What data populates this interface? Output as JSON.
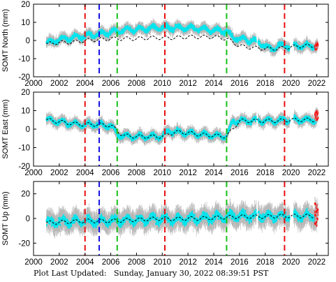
{
  "footer": {
    "label": "Plot Last Updated:",
    "datetime": "Sunday, January 30, 2022 08:39:51 PST"
  },
  "chart_data": [
    {
      "type": "scatter",
      "ylabel": "SOMT North (mm)",
      "xlim": [
        2000,
        2022.9
      ],
      "ylim": [
        -20,
        20
      ],
      "yticks": [
        -20,
        -10,
        0,
        10,
        20
      ],
      "xticks": [
        2000,
        2002,
        2004,
        2006,
        2008,
        2010,
        2012,
        2014,
        2016,
        2018,
        2020,
        2022
      ],
      "series": [
        {
          "color": "#00e5ee",
          "values": [
            [
              2001.0,
              -1.5
            ],
            [
              2001.5,
              -0.5
            ],
            [
              2002.0,
              0.5
            ],
            [
              2002.5,
              1.0
            ],
            [
              2003.0,
              1.5
            ],
            [
              2003.5,
              2.0
            ],
            [
              2004.0,
              2.5
            ],
            [
              2004.5,
              3.0
            ],
            [
              2005.0,
              3.5
            ],
            [
              2005.5,
              4.0
            ],
            [
              2006.0,
              4.5
            ],
            [
              2006.5,
              5.0
            ],
            [
              2007.0,
              5.5
            ],
            [
              2007.5,
              6.0
            ],
            [
              2008.0,
              6.0
            ],
            [
              2008.5,
              6.5
            ],
            [
              2009.0,
              6.5
            ],
            [
              2009.5,
              7.0
            ],
            [
              2010.0,
              7.0
            ],
            [
              2010.5,
              7.0
            ],
            [
              2011.0,
              7.0
            ],
            [
              2011.5,
              7.0
            ],
            [
              2012.0,
              7.0
            ],
            [
              2012.5,
              6.5
            ],
            [
              2013.0,
              6.5
            ],
            [
              2013.5,
              6.0
            ],
            [
              2014.0,
              5.5
            ],
            [
              2014.5,
              5.5
            ],
            [
              2015.0,
              5.0
            ],
            [
              2015.5,
              1.5
            ],
            [
              2016.0,
              1.0
            ],
            [
              2016.5,
              0.5
            ],
            [
              2017.0,
              0.0
            ],
            [
              2017.5,
              -1.0
            ],
            [
              2018.0,
              -3.0
            ],
            [
              2018.5,
              -5.0
            ],
            [
              2019.0,
              -3.0
            ],
            [
              2019.5,
              -3.0
            ],
            [
              2020.0,
              -3.0
            ],
            [
              2020.5,
              -3.0
            ],
            [
              2021.0,
              -3.0
            ],
            [
              2021.5,
              -3.0
            ],
            [
              2022.0,
              -3.0
            ]
          ]
        },
        {
          "color": "#000000",
          "values": [
            [
              2001.0,
              -2.0
            ],
            [
              2002.0,
              -1.0
            ],
            [
              2003.0,
              -1.0
            ],
            [
              2004.0,
              0.0
            ],
            [
              2005.0,
              0.5
            ],
            [
              2006.0,
              1.0
            ],
            [
              2007.0,
              1.0
            ],
            [
              2008.0,
              1.0
            ],
            [
              2009.0,
              1.5
            ],
            [
              2010.0,
              1.5
            ],
            [
              2011.0,
              1.5
            ],
            [
              2012.0,
              2.0
            ],
            [
              2013.0,
              2.0
            ],
            [
              2014.0,
              2.0
            ],
            [
              2015.0,
              1.0
            ],
            [
              2016.0,
              -3.0
            ],
            [
              2017.0,
              -4.0
            ],
            [
              2018.0,
              -4.5
            ],
            [
              2019.0,
              -4.5
            ],
            [
              2020.0,
              -3.5
            ],
            [
              2021.0,
              -3.0
            ],
            [
              2022.0,
              -3.0
            ]
          ]
        },
        {
          "color": "#ff0000",
          "values": [
            [
              2021.9,
              -3.0
            ],
            [
              2022.0,
              -2.0
            ],
            [
              2022.05,
              -4.0
            ]
          ]
        }
      ],
      "vlines": [
        {
          "x": 2004.0,
          "color": "#e81010"
        },
        {
          "x": 2005.1,
          "color": "#1414e6"
        },
        {
          "x": 2006.5,
          "color": "#18c018"
        },
        {
          "x": 2010.2,
          "color": "#e81010"
        },
        {
          "x": 2015.0,
          "color": "#18c018"
        },
        {
          "x": 2019.5,
          "color": "#e81010"
        }
      ]
    },
    {
      "type": "scatter",
      "ylabel": "SOMT East (mm)",
      "xlim": [
        2000,
        2022.9
      ],
      "ylim": [
        -20,
        20
      ],
      "yticks": [
        -20,
        -10,
        0,
        10,
        20
      ],
      "xticks": [
        2000,
        2002,
        2004,
        2006,
        2008,
        2010,
        2012,
        2014,
        2016,
        2018,
        2020,
        2022
      ],
      "series": [
        {
          "color": "#00e5ee",
          "values": [
            [
              2001.0,
              5.0
            ],
            [
              2001.5,
              4.5
            ],
            [
              2002.0,
              4.0
            ],
            [
              2002.5,
              3.5
            ],
            [
              2003.0,
              3.0
            ],
            [
              2003.5,
              2.5
            ],
            [
              2004.0,
              2.5
            ],
            [
              2004.5,
              2.5
            ],
            [
              2005.0,
              2.5
            ],
            [
              2005.5,
              2.0
            ],
            [
              2006.0,
              2.0
            ],
            [
              2006.5,
              -3.0
            ],
            [
              2007.0,
              -3.5
            ],
            [
              2007.5,
              -4.0
            ],
            [
              2008.0,
              -4.0
            ],
            [
              2008.5,
              -4.0
            ],
            [
              2009.0,
              -4.0
            ],
            [
              2009.5,
              -4.0
            ],
            [
              2010.0,
              -4.0
            ],
            [
              2010.5,
              -1.0
            ],
            [
              2011.0,
              -1.5
            ],
            [
              2011.5,
              -2.0
            ],
            [
              2012.0,
              -2.0
            ],
            [
              2012.5,
              -2.5
            ],
            [
              2013.0,
              -3.0
            ],
            [
              2013.5,
              -3.0
            ],
            [
              2014.0,
              -3.5
            ],
            [
              2014.5,
              -3.5
            ],
            [
              2015.0,
              -4.0
            ],
            [
              2015.5,
              4.5
            ],
            [
              2016.0,
              4.5
            ],
            [
              2016.5,
              4.5
            ],
            [
              2017.0,
              4.5
            ],
            [
              2017.5,
              4.5
            ],
            [
              2018.0,
              4.5
            ],
            [
              2018.5,
              4.5
            ],
            [
              2019.0,
              4.5
            ],
            [
              2019.5,
              5.0
            ],
            [
              2020.0,
              5.0
            ],
            [
              2020.5,
              5.0
            ],
            [
              2021.0,
              5.0
            ],
            [
              2021.5,
              5.0
            ],
            [
              2022.0,
              5.0
            ]
          ]
        },
        {
          "color": "#000000",
          "values": [
            [
              2001.0,
              5.0
            ],
            [
              2002.0,
              4.0
            ],
            [
              2003.0,
              3.0
            ],
            [
              2004.0,
              2.5
            ],
            [
              2005.0,
              2.5
            ],
            [
              2006.0,
              2.0
            ],
            [
              2007.0,
              -3.5
            ],
            [
              2008.0,
              -4.0
            ],
            [
              2009.0,
              -4.0
            ],
            [
              2010.0,
              -4.0
            ],
            [
              2011.0,
              -1.5
            ],
            [
              2012.0,
              -2.0
            ],
            [
              2013.0,
              -3.0
            ],
            [
              2014.0,
              -3.5
            ],
            [
              2015.0,
              -4.0
            ],
            [
              2016.0,
              4.5
            ],
            [
              2017.0,
              4.5
            ],
            [
              2018.0,
              4.5
            ],
            [
              2019.0,
              4.5
            ],
            [
              2020.0,
              5.0
            ],
            [
              2021.0,
              5.0
            ],
            [
              2022.0,
              5.0
            ]
          ]
        },
        {
          "color": "#ff0000",
          "values": [
            [
              2021.9,
              6.0
            ],
            [
              2022.0,
              8.0
            ],
            [
              2022.05,
              9.0
            ]
          ]
        }
      ],
      "vlines": [
        {
          "x": 2004.0,
          "color": "#e81010"
        },
        {
          "x": 2005.1,
          "color": "#1414e6"
        },
        {
          "x": 2006.5,
          "color": "#18c018"
        },
        {
          "x": 2010.2,
          "color": "#e81010"
        },
        {
          "x": 2015.0,
          "color": "#18c018"
        },
        {
          "x": 2019.5,
          "color": "#e81010"
        }
      ]
    },
    {
      "type": "scatter",
      "ylabel": "SOMT Up (mm)",
      "xlim": [
        2000,
        2022.9
      ],
      "ylim": [
        -30,
        30
      ],
      "yticks": [
        -20,
        0,
        20
      ],
      "xticks": [
        2000,
        2002,
        2004,
        2006,
        2008,
        2010,
        2012,
        2014,
        2016,
        2018,
        2020,
        2022
      ],
      "xticklabels": [
        "2000",
        "2002",
        "2004",
        "2006",
        "2008",
        "2010",
        "2012",
        "2014",
        "2016",
        "2018",
        "2020",
        "2022"
      ],
      "series": [
        {
          "color": "#00e5ee",
          "values": [
            [
              2001.0,
              -3.0
            ],
            [
              2001.5,
              -3.0
            ],
            [
              2002.0,
              -3.0
            ],
            [
              2002.5,
              -2.5
            ],
            [
              2003.0,
              -2.5
            ],
            [
              2003.5,
              -2.0
            ],
            [
              2004.0,
              -2.0
            ],
            [
              2004.5,
              -2.0
            ],
            [
              2005.0,
              -2.5
            ],
            [
              2005.5,
              -2.0
            ],
            [
              2006.0,
              -2.0
            ],
            [
              2006.5,
              -1.5
            ],
            [
              2007.0,
              -1.5
            ],
            [
              2007.5,
              -1.0
            ],
            [
              2008.0,
              -1.0
            ],
            [
              2008.5,
              -1.0
            ],
            [
              2009.0,
              -0.5
            ],
            [
              2009.5,
              -0.5
            ],
            [
              2010.0,
              0.0
            ],
            [
              2010.5,
              -1.0
            ],
            [
              2011.0,
              -1.0
            ],
            [
              2011.5,
              -0.5
            ],
            [
              2012.0,
              -0.5
            ],
            [
              2012.5,
              0.0
            ],
            [
              2013.0,
              0.0
            ],
            [
              2013.5,
              0.5
            ],
            [
              2014.0,
              0.5
            ],
            [
              2014.5,
              1.0
            ],
            [
              2015.0,
              1.0
            ],
            [
              2015.5,
              2.0
            ],
            [
              2016.0,
              2.0
            ],
            [
              2016.5,
              2.0
            ],
            [
              2017.0,
              2.0
            ],
            [
              2017.5,
              2.0
            ],
            [
              2018.0,
              2.0
            ],
            [
              2018.5,
              2.0
            ],
            [
              2019.0,
              2.0
            ],
            [
              2019.5,
              2.0
            ],
            [
              2020.0,
              2.0
            ],
            [
              2020.5,
              2.0
            ],
            [
              2021.0,
              2.0
            ],
            [
              2021.5,
              2.0
            ],
            [
              2022.0,
              2.0
            ]
          ]
        },
        {
          "color": "#000000",
          "values": [
            [
              2001.0,
              -3.5
            ],
            [
              2002.0,
              -3.0
            ],
            [
              2003.0,
              -2.5
            ],
            [
              2004.0,
              -2.0
            ],
            [
              2005.0,
              -2.0
            ],
            [
              2006.0,
              -2.0
            ],
            [
              2007.0,
              -1.5
            ],
            [
              2008.0,
              -1.0
            ],
            [
              2009.0,
              -0.5
            ],
            [
              2010.0,
              0.0
            ],
            [
              2011.0,
              -0.5
            ],
            [
              2012.0,
              0.0
            ],
            [
              2013.0,
              0.0
            ],
            [
              2014.0,
              0.5
            ],
            [
              2015.0,
              1.0
            ],
            [
              2016.0,
              1.5
            ],
            [
              2017.0,
              1.5
            ],
            [
              2018.0,
              1.5
            ],
            [
              2019.0,
              2.0
            ],
            [
              2020.0,
              2.0
            ],
            [
              2021.0,
              2.0
            ],
            [
              2022.0,
              2.0
            ]
          ]
        },
        {
          "color": "#ff0000",
          "values": [
            [
              2021.9,
              4.0
            ],
            [
              2022.0,
              8.0
            ],
            [
              2022.05,
              -2.0
            ]
          ]
        }
      ],
      "vlines": [
        {
          "x": 2004.0,
          "color": "#e81010"
        },
        {
          "x": 2005.1,
          "color": "#1414e6"
        },
        {
          "x": 2006.5,
          "color": "#18c018"
        },
        {
          "x": 2010.2,
          "color": "#e81010"
        },
        {
          "x": 2015.0,
          "color": "#18c018"
        },
        {
          "x": 2019.5,
          "color": "#e81010"
        }
      ]
    }
  ]
}
